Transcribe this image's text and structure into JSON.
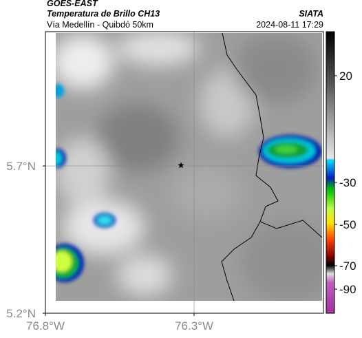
{
  "header": {
    "title": "GOES-EAST",
    "subtitle": "Temperatura de Brillo CH13",
    "route": "Vía Medellín - Quibdó 50km",
    "brand": "SIATA",
    "timestamp": "2024-08-11 17:29"
  },
  "map": {
    "xlim": [
      -76.8,
      -75.865
    ],
    "ylim": [
      5.2,
      6.156
    ],
    "xticks": [
      {
        "value": -76.8,
        "label": "76.8°W"
      },
      {
        "value": -76.3,
        "label": "76.3°W"
      }
    ],
    "yticks": [
      {
        "value": 5.2,
        "label": "5.2°N"
      },
      {
        "value": 5.7,
        "label": "5.7°N"
      }
    ],
    "grid": true,
    "marker": {
      "lon": -76.344,
      "lat": 5.702
    }
  },
  "colorbar": {
    "ticks": [
      20,
      -30,
      -50,
      -70,
      -90
    ]
  }
}
